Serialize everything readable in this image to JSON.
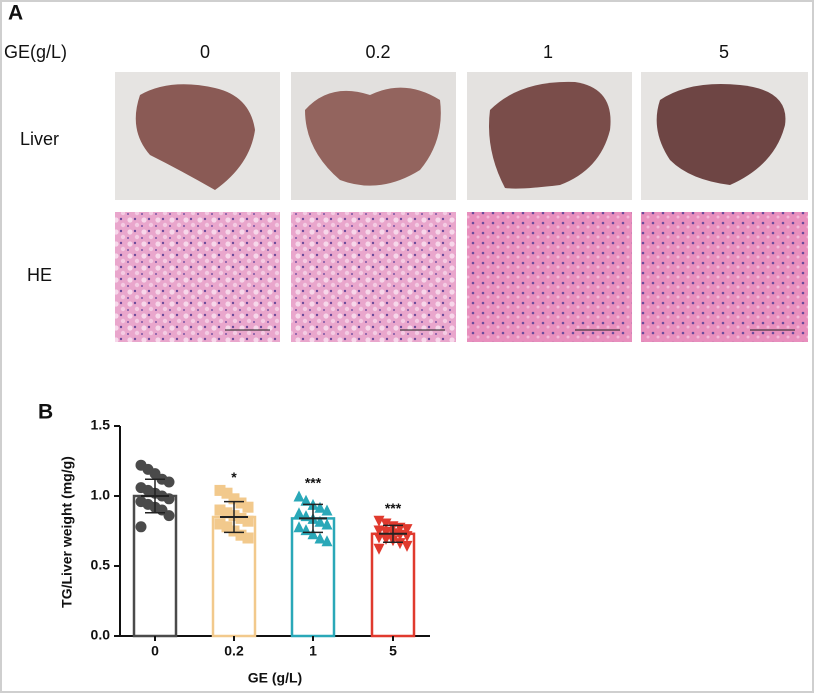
{
  "panel_a": {
    "label": "A",
    "header_label": "GE(g/L)",
    "columns": [
      "0",
      "0.2",
      "1",
      "5"
    ],
    "rows": [
      "Liver",
      "HE"
    ]
  },
  "chart_data": {
    "type": "bar",
    "label": "B",
    "y_label": "TG/Liver weight (mg/g)",
    "x_label": "GE (g/L)",
    "categories": [
      "0",
      "0.2",
      "1",
      "5"
    ],
    "values": [
      1.0,
      0.85,
      0.84,
      0.73
    ],
    "errors": [
      0.12,
      0.11,
      0.1,
      0.06
    ],
    "colors": [
      "#4a4a4a",
      "#f2c98c",
      "#2aa8b8",
      "#e03a2e"
    ],
    "markers": [
      "circle",
      "square",
      "triangle-up",
      "triangle-down"
    ],
    "annotations": [
      null,
      "*",
      "***",
      "***"
    ],
    "points": [
      [
        1.22,
        1.19,
        1.16,
        1.12,
        1.1,
        1.06,
        1.04,
        1.02,
        1.0,
        0.98,
        0.96,
        0.94,
        0.92,
        0.9,
        0.86,
        0.78
      ],
      [
        1.04,
        1.02,
        0.98,
        0.95,
        0.92,
        0.9,
        0.88,
        0.86,
        0.84,
        0.82,
        0.8,
        0.78,
        0.75,
        0.72,
        0.7
      ],
      [
        1.0,
        0.97,
        0.94,
        0.92,
        0.9,
        0.88,
        0.86,
        0.84,
        0.82,
        0.8,
        0.78,
        0.76,
        0.73,
        0.7,
        0.68
      ],
      [
        0.82,
        0.8,
        0.78,
        0.77,
        0.76,
        0.75,
        0.74,
        0.73,
        0.72,
        0.71,
        0.7,
        0.69,
        0.68,
        0.66,
        0.64,
        0.62
      ]
    ],
    "ylim": [
      0,
      1.5
    ],
    "yticks": [
      {
        "value": 0,
        "label": "0.0"
      },
      0.5,
      {
        "value": 1,
        "label": "1.0"
      },
      1.5
    ]
  }
}
